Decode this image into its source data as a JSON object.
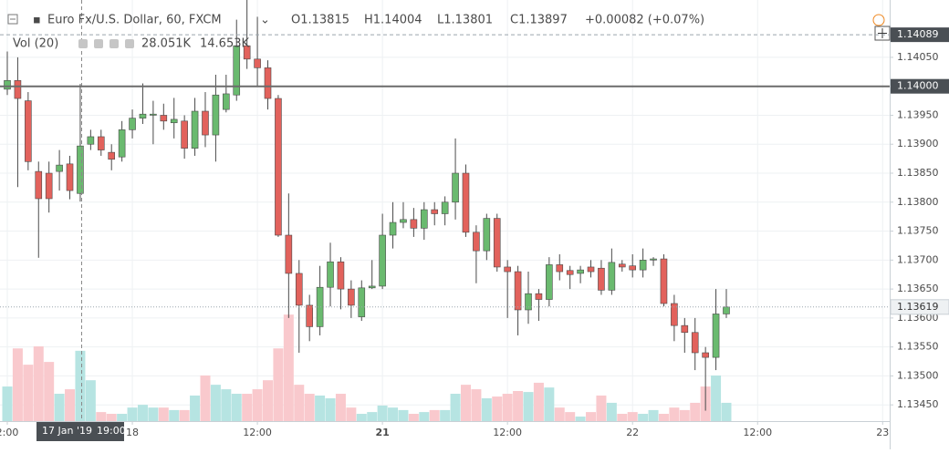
{
  "header": {
    "title": "Euro Fx/U.S. Dollar, 60, FXCM",
    "ohlc": [
      "O1.13815",
      "H1.14004",
      "L1.13801",
      "C1.13897"
    ],
    "change": "+0.00082 (+0.07%)",
    "volume_label": "Vol (20)",
    "volume_value": "28.051K",
    "volume_ma": "14.653K"
  },
  "crosshair": {
    "date": "17 Jan '19",
    "time": "19:00"
  },
  "chart_data": {
    "type": "candlestick",
    "categories": [
      "2:00",
      null,
      null,
      null,
      null,
      null,
      null,
      null,
      null,
      null,
      null,
      null,
      "18",
      null,
      null,
      null,
      null,
      null,
      null,
      null,
      null,
      null,
      null,
      null,
      "12:00",
      null,
      null,
      null,
      null,
      null,
      null,
      null,
      null,
      null,
      null,
      null,
      "21",
      null,
      null,
      null,
      null,
      null,
      null,
      null,
      null,
      null,
      null,
      null,
      "12:00",
      null,
      null,
      null,
      null,
      null,
      null,
      null,
      null,
      null,
      null,
      null,
      "22",
      null,
      null,
      null,
      null,
      null,
      null,
      null,
      null,
      null,
      null,
      null,
      "12:00",
      null,
      null,
      null,
      null,
      null,
      null,
      null,
      null,
      null,
      null,
      null,
      "23"
    ],
    "bold_categories": [
      "21"
    ],
    "open": [
      1.13995,
      1.1401,
      1.13975,
      1.13853,
      1.1385,
      1.13853,
      1.13866,
      1.13815,
      1.139,
      1.13913,
      1.13886,
      1.13878,
      1.13925,
      1.13945,
      1.1395,
      1.1395,
      1.13937,
      1.1394,
      1.13893,
      1.13957,
      1.13916,
      1.1396,
      1.13985,
      1.1407,
      1.14047,
      1.14032,
      1.13979,
      1.13743,
      1.13677,
      1.13622,
      1.13585,
      1.13653,
      1.13697,
      1.1365,
      1.13602,
      1.13652,
      1.13655,
      1.13743,
      1.13765,
      1.1377,
      1.13755,
      1.13787,
      1.1378,
      1.138,
      1.1385,
      1.13748,
      1.13716,
      1.13772,
      1.13688,
      1.1368,
      1.13614,
      1.13642,
      1.13632,
      1.13692,
      1.13682,
      1.13677,
      1.13688,
      1.13686,
      1.13648,
      1.13693,
      1.1369,
      1.13683,
      1.137,
      1.13702,
      1.13625,
      1.13587,
      1.13575,
      1.1354,
      1.13532,
      1.13607,
      null,
      null,
      null,
      null,
      null,
      null,
      null,
      null,
      null,
      null,
      null,
      null,
      null,
      null,
      null
    ],
    "high": [
      1.1406,
      1.1405,
      1.1399,
      1.1387,
      1.1387,
      1.1389,
      1.1388,
      1.14004,
      1.13925,
      1.13925,
      1.139,
      1.1394,
      1.1396,
      1.14005,
      1.13975,
      1.1397,
      1.1398,
      1.1395,
      1.1398,
      1.1399,
      1.1402,
      1.1402,
      1.14115,
      1.14149,
      1.1412,
      1.14045,
      1.13985,
      1.13815,
      1.137,
      1.1364,
      1.1369,
      1.1373,
      1.13705,
      1.13665,
      1.13665,
      1.137,
      1.1378,
      1.138,
      1.138,
      1.1379,
      1.138,
      1.138,
      1.1381,
      1.1391,
      1.13865,
      1.1376,
      1.1378,
      1.1378,
      1.137,
      1.1369,
      1.1368,
      1.1365,
      1.13705,
      1.1371,
      1.1369,
      1.1369,
      1.137,
      1.137,
      1.1372,
      1.137,
      1.1371,
      1.1372,
      1.13705,
      1.1371,
      1.1364,
      1.136,
      1.136,
      1.1355,
      1.1365,
      1.1365,
      null,
      null,
      null,
      null,
      null,
      null,
      null,
      null,
      null,
      null,
      null,
      null,
      null,
      null,
      null
    ],
    "low": [
      1.13985,
      1.13826,
      1.13855,
      1.13704,
      1.13782,
      1.1382,
      1.13805,
      1.13801,
      1.1389,
      1.1388,
      1.13855,
      1.1387,
      1.1391,
      1.13935,
      1.139,
      1.13925,
      1.1391,
      1.13875,
      1.1388,
      1.13895,
      1.1387,
      1.13955,
      1.13975,
      1.1403,
      1.14,
      1.1396,
      1.1374,
      1.136,
      1.1354,
      1.1356,
      1.1357,
      1.1362,
      1.13615,
      1.136,
      1.13595,
      1.1365,
      1.1365,
      1.1372,
      1.13755,
      1.1374,
      1.13735,
      1.1376,
      1.1376,
      1.1377,
      1.1374,
      1.1366,
      1.137,
      1.1368,
      1.136,
      1.1357,
      1.1359,
      1.13595,
      1.1362,
      1.13665,
      1.1365,
      1.1366,
      1.1367,
      1.1364,
      1.1364,
      1.1368,
      1.1367,
      1.1367,
      1.1369,
      1.1362,
      1.1356,
      1.1354,
      1.1351,
      1.1344,
      1.1351,
      1.136,
      null,
      null,
      null,
      null,
      null,
      null,
      null,
      null,
      null,
      null,
      null,
      null,
      null,
      null,
      null
    ],
    "close": [
      1.1401,
      1.13979,
      1.1387,
      1.13806,
      1.13806,
      1.13864,
      1.1382,
      1.13897,
      1.13913,
      1.1389,
      1.13874,
      1.13925,
      1.13945,
      1.13952,
      1.13952,
      1.1394,
      1.13943,
      1.13893,
      1.13957,
      1.13916,
      1.13985,
      1.13987,
      1.1407,
      1.14047,
      1.14032,
      1.13979,
      1.13743,
      1.13677,
      1.13622,
      1.13585,
      1.13653,
      1.13697,
      1.1365,
      1.13622,
      1.13652,
      1.13655,
      1.13743,
      1.13765,
      1.1377,
      1.13755,
      1.13787,
      1.1378,
      1.138,
      1.1385,
      1.13748,
      1.13716,
      1.13772,
      1.13688,
      1.1368,
      1.13614,
      1.13642,
      1.13632,
      1.13692,
      1.1368,
      1.13675,
      1.13683,
      1.1368,
      1.13648,
      1.13696,
      1.13688,
      1.13683,
      1.137,
      1.13702,
      1.13625,
      1.13587,
      1.13575,
      1.1354,
      1.13532,
      1.13607,
      1.13619,
      null,
      null,
      null,
      null,
      null,
      null,
      null,
      null,
      null,
      null,
      null,
      null,
      null,
      null,
      null
    ],
    "volume": [
      13800,
      29000,
      22500,
      29800,
      23600,
      10900,
      12700,
      28051,
      16300,
      3600,
      2900,
      2900,
      5400,
      6500,
      5400,
      5400,
      4400,
      4400,
      10200,
      18200,
      14500,
      12700,
      10900,
      10900,
      12700,
      16300,
      29000,
      42500,
      14500,
      10900,
      10200,
      9100,
      10900,
      5400,
      2900,
      3600,
      6200,
      5400,
      4400,
      2900,
      3600,
      4400,
      4400,
      10900,
      14500,
      12700,
      9100,
      9800,
      10900,
      12000,
      11600,
      15300,
      13400,
      5400,
      3600,
      1800,
      3600,
      10200,
      7300,
      2900,
      3600,
      2900,
      4400,
      2900,
      5400,
      4400,
      7300,
      13800,
      18200,
      7300,
      null,
      null,
      null,
      null,
      null,
      null,
      null,
      null,
      null,
      null,
      null,
      null,
      null,
      null,
      null
    ],
    "ylim": [
      1.13422,
      1.14149
    ],
    "volume_ylim": [
      0,
      168000
    ],
    "yticks": [
      {
        "value": 1.1345,
        "label": "1.13450"
      },
      {
        "value": 1.135,
        "label": "1.13500"
      },
      {
        "value": 1.1355,
        "label": "1.13550"
      },
      {
        "value": 1.136,
        "label": "1.13600"
      },
      {
        "value": 1.1365,
        "label": "1.13650"
      },
      {
        "value": 1.137,
        "label": "1.13700"
      },
      {
        "value": 1.1375,
        "label": "1.13750"
      },
      {
        "value": 1.138,
        "label": "1.13800"
      },
      {
        "value": 1.1385,
        "label": "1.13850"
      },
      {
        "value": 1.139,
        "label": "1.13900"
      },
      {
        "value": 1.1395,
        "label": "1.13950"
      },
      {
        "value": 1.14,
        "label": "1.14000"
      },
      {
        "value": 1.1405,
        "label": "1.14050"
      }
    ],
    "price_lines": [
      {
        "value": 1.14,
        "label": "1.14000",
        "style": "solid",
        "color": "#6b6b6b"
      },
      {
        "value": 1.13619,
        "label": "1.13619",
        "style": "dotted",
        "color": "#9aa5ad"
      },
      {
        "value": 1.14089,
        "label": "1.14089",
        "style": "dashed",
        "color": "#9aa5ad"
      }
    ],
    "up_color": "#6aba6f",
    "down_color": "#e2625c",
    "up_volume_color": "#b6e4e2",
    "down_volume_color": "#f9c9cd",
    "grid": true
  }
}
